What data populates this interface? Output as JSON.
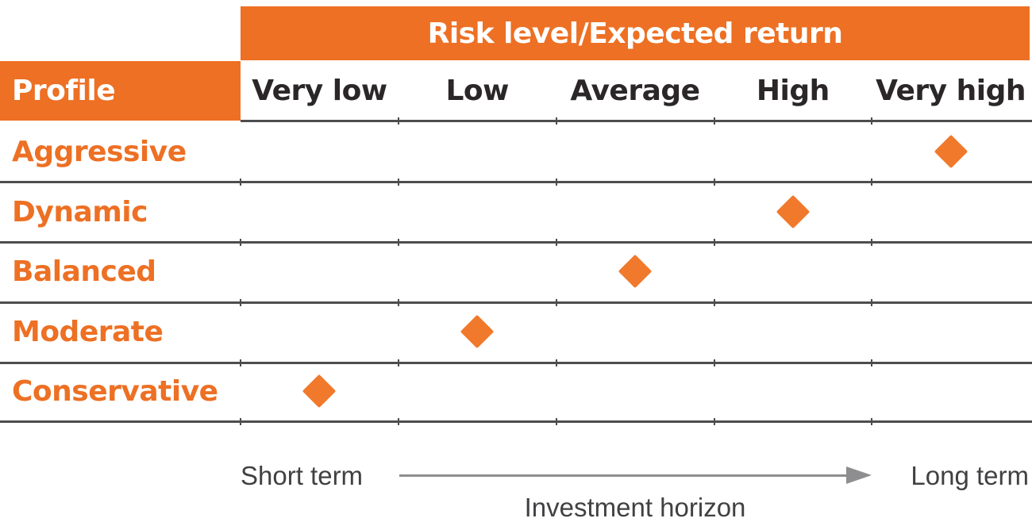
{
  "header": {
    "title": "Risk level/Expected return",
    "profile_label": "Profile"
  },
  "columns": [
    "Very low",
    "Low",
    "Average",
    "High",
    "Very high"
  ],
  "rows": [
    {
      "profile": "Aggressive",
      "risk_level": "Very high"
    },
    {
      "profile": "Dynamic",
      "risk_level": "High"
    },
    {
      "profile": "Balanced",
      "risk_level": "Average"
    },
    {
      "profile": "Moderate",
      "risk_level": "Low"
    },
    {
      "profile": "Conservative",
      "risk_level": "Very low"
    }
  ],
  "footer": {
    "left_label": "Short term",
    "right_label": "Long term",
    "axis_label": "Investment horizon"
  },
  "marker": {
    "shape": "diamond-icon"
  },
  "colors": {
    "accent_orange": "#ED7024",
    "marker_orange": "#F0792B",
    "header_text": "#2B2728",
    "line_gray": "#4D4D4F",
    "arrow_gray": "#8E8E90",
    "footer_text": "#414143",
    "title_text": "#FFFFFF"
  },
  "chart_data": {
    "type": "table",
    "title": "Risk level/Expected return",
    "columns": [
      "Very low",
      "Low",
      "Average",
      "High",
      "Very high"
    ],
    "row_header": "Profile",
    "rows": [
      "Aggressive",
      "Dynamic",
      "Balanced",
      "Moderate",
      "Conservative"
    ],
    "values": [
      {
        "profile": "Aggressive",
        "risk_level_expected_return": "Very high"
      },
      {
        "profile": "Dynamic",
        "risk_level_expected_return": "High"
      },
      {
        "profile": "Balanced",
        "risk_level_expected_return": "Average"
      },
      {
        "profile": "Moderate",
        "risk_level_expected_return": "Low"
      },
      {
        "profile": "Conservative",
        "risk_level_expected_return": "Very low"
      }
    ],
    "marker": "orange diamond",
    "xlabel": "Investment horizon",
    "x_axis_ends": [
      "Short term",
      "Long term"
    ],
    "legend": "none",
    "grid": "horizontal row separators with column ticks"
  }
}
